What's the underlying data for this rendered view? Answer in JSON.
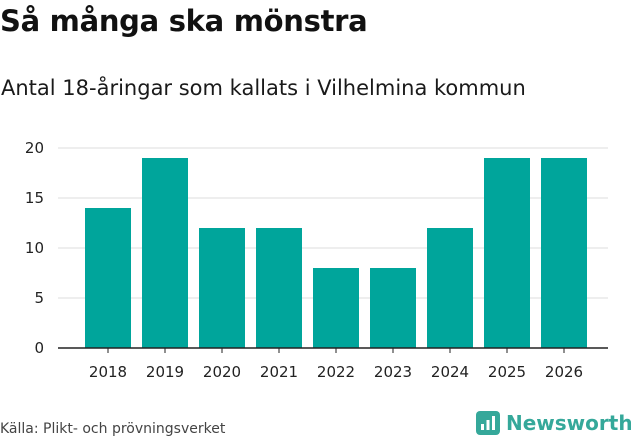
{
  "header": {
    "title": "Så många ska mönstra",
    "subtitle": "Antal 18-åringar som kallats i Vilhelmina kommun"
  },
  "chart_data": {
    "type": "bar",
    "categories": [
      "2018",
      "2019",
      "2020",
      "2021",
      "2022",
      "2023",
      "2024",
      "2025",
      "2026"
    ],
    "values": [
      14,
      19,
      12,
      12,
      8,
      8,
      12,
      19,
      19
    ],
    "yticks": [
      0,
      5,
      10,
      15,
      20
    ],
    "ylim": [
      0,
      21
    ],
    "grid": true,
    "bar_color": "#00a59b",
    "grid_color": "#dddddd"
  },
  "footer": {
    "source": "Källa: Plikt- och prövningsverket",
    "brand": "Newsworthy",
    "brand_color": "#35a89a",
    "brand_icon": "bar-chart-icon"
  }
}
